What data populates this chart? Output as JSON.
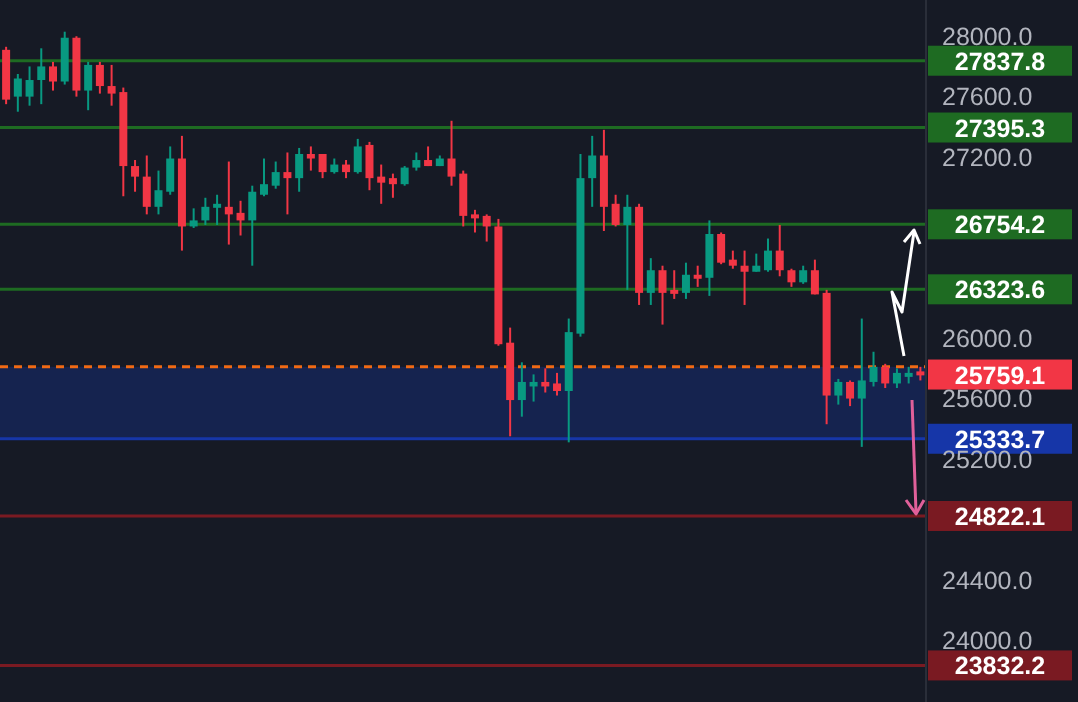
{
  "chart_data": {
    "type": "candlestick",
    "categories": [
      null,
      null,
      null,
      null,
      null,
      null,
      null,
      null,
      null,
      null,
      null,
      null,
      null,
      null,
      null,
      null,
      null,
      null,
      null,
      null,
      null,
      null,
      null,
      null,
      null,
      null,
      null,
      null,
      null,
      null,
      null,
      null,
      null,
      null,
      null,
      null,
      null,
      null,
      null,
      null,
      null,
      null,
      null,
      null,
      null,
      null,
      null,
      null,
      null,
      null,
      null,
      null,
      null,
      null,
      null,
      null,
      null,
      null,
      null,
      null,
      null,
      null,
      null,
      null,
      null,
      null,
      null,
      null,
      null,
      null,
      null,
      null,
      null,
      null,
      null,
      null,
      null,
      null,
      null
    ],
    "ohlc": [
      [
        27910,
        27930,
        27550,
        27580
      ],
      [
        27600,
        27750,
        27500,
        27720
      ],
      [
        27600,
        27800,
        27540,
        27710
      ],
      [
        27710,
        27920,
        27550,
        27800
      ],
      [
        27800,
        27830,
        27640,
        27700
      ],
      [
        27700,
        28030,
        27680,
        27990
      ],
      [
        27990,
        28000,
        27600,
        27640
      ],
      [
        27640,
        27830,
        27510,
        27810
      ],
      [
        27810,
        27830,
        27620,
        27670
      ],
      [
        27670,
        27810,
        27540,
        27620
      ],
      [
        27630,
        27660,
        26940,
        27140
      ],
      [
        27140,
        27180,
        26970,
        27070
      ],
      [
        27070,
        27210,
        26820,
        26870
      ],
      [
        26870,
        27110,
        26820,
        26980
      ],
      [
        26970,
        27270,
        26950,
        27190
      ],
      [
        27190,
        27340,
        26580,
        26740
      ],
      [
        26740,
        26860,
        26730,
        26780
      ],
      [
        26780,
        26930,
        26750,
        26870
      ],
      [
        26870,
        26950,
        26750,
        26890
      ],
      [
        26870,
        27170,
        26620,
        26820
      ],
      [
        26830,
        26910,
        26680,
        26780
      ],
      [
        26780,
        27010,
        26480,
        26970
      ],
      [
        26950,
        27190,
        26940,
        27020
      ],
      [
        27010,
        27170,
        26990,
        27100
      ],
      [
        27100,
        27230,
        26820,
        27060
      ],
      [
        27060,
        27260,
        26970,
        27220
      ],
      [
        27220,
        27270,
        27110,
        27190
      ],
      [
        27220,
        27220,
        27060,
        27100
      ],
      [
        27100,
        27190,
        27090,
        27150
      ],
      [
        27150,
        27180,
        27060,
        27100
      ],
      [
        27100,
        27320,
        27090,
        27270
      ],
      [
        27280,
        27300,
        26980,
        27060
      ],
      [
        27070,
        27150,
        26890,
        27030
      ],
      [
        27060,
        27090,
        26930,
        27020
      ],
      [
        27020,
        27140,
        27010,
        27130
      ],
      [
        27130,
        27230,
        27110,
        27180
      ],
      [
        27180,
        27270,
        27140,
        27140
      ],
      [
        27140,
        27210,
        27140,
        27190
      ],
      [
        27190,
        27440,
        27010,
        27070
      ],
      [
        27090,
        27110,
        26740,
        26810
      ],
      [
        26820,
        26850,
        26700,
        26810
      ],
      [
        26810,
        26820,
        26640,
        26740
      ],
      [
        26740,
        26790,
        25950,
        25960
      ],
      [
        25970,
        26070,
        25350,
        25590
      ],
      [
        25590,
        25840,
        25480,
        25710
      ],
      [
        25680,
        25760,
        25580,
        25710
      ],
      [
        25710,
        25800,
        25640,
        25680
      ],
      [
        25700,
        25770,
        25620,
        25650
      ],
      [
        25650,
        26130,
        25310,
        26040
      ],
      [
        26030,
        27220,
        26010,
        27060
      ],
      [
        27060,
        27340,
        26870,
        27210
      ],
      [
        27210,
        27380,
        26710,
        26870
      ],
      [
        26890,
        26950,
        26740,
        26750
      ],
      [
        26750,
        26950,
        26320,
        26870
      ],
      [
        26870,
        26890,
        26220,
        26300
      ],
      [
        26300,
        26530,
        26220,
        26450
      ],
      [
        26450,
        26480,
        26090,
        26300
      ],
      [
        26320,
        26450,
        26260,
        26300
      ],
      [
        26300,
        26500,
        26260,
        26420
      ],
      [
        26420,
        26480,
        26340,
        26400
      ],
      [
        26400,
        26780,
        26280,
        26690
      ],
      [
        26690,
        26700,
        26490,
        26500
      ],
      [
        26520,
        26580,
        26460,
        26480
      ],
      [
        26480,
        26580,
        26220,
        26440
      ],
      [
        26440,
        26560,
        26440,
        26480
      ],
      [
        26450,
        26660,
        26440,
        26580
      ],
      [
        26580,
        26750,
        26410,
        26450
      ],
      [
        26450,
        26460,
        26340,
        26370
      ],
      [
        26370,
        26480,
        26360,
        26450
      ],
      [
        26450,
        26520,
        26290,
        26290
      ],
      [
        26300,
        26320,
        25430,
        25620
      ],
      [
        25620,
        25730,
        25560,
        25710
      ],
      [
        25710,
        25720,
        25550,
        25600
      ],
      [
        25600,
        26130,
        25280,
        25720
      ],
      [
        25710,
        25910,
        25680,
        25810
      ],
      [
        25810,
        25830,
        25670,
        25700
      ],
      [
        25700,
        25800,
        25670,
        25770
      ],
      [
        25760,
        25810,
        25700,
        25770
      ],
      [
        25780,
        25810,
        25720,
        25759.1
      ]
    ],
    "ylim": [
      23590,
      28240
    ],
    "yticks": [
      {
        "value": 24000,
        "label": "24000.0"
      },
      {
        "value": 24400,
        "label": "24400.0"
      },
      {
        "value": 25200,
        "label": "25200.0"
      },
      {
        "value": 25600,
        "label": "25600.0"
      },
      {
        "value": 26000,
        "label": "26000.0"
      },
      {
        "value": 27200,
        "label": "27200.0"
      },
      {
        "value": 27600,
        "label": "27600.0"
      },
      {
        "value": 28000,
        "label": "28000.0"
      }
    ],
    "tick_labels": "y",
    "ref_lines": [
      {
        "axis": "y",
        "value": 27837.8,
        "label": "27837.8",
        "color": "#1e6b22"
      },
      {
        "axis": "y",
        "value": 27395.3,
        "label": "27395.3",
        "color": "#1e6b22"
      },
      {
        "axis": "y",
        "value": 26754.2,
        "label": "26754.2",
        "color": "#1e6b22"
      },
      {
        "axis": "y",
        "value": 26323.6,
        "label": "26323.6",
        "color": "#1e6b22"
      },
      {
        "axis": "y",
        "value": 25810,
        "label": null,
        "color": "#f06a14",
        "line_style": "dashed"
      },
      {
        "axis": "y",
        "value": 25333.7,
        "label": "25333.7",
        "color": "#1636a8"
      },
      {
        "axis": "y",
        "value": 24822.1,
        "label": "24822.1",
        "color": "#7a1a22"
      },
      {
        "axis": "y",
        "value": 23832.2,
        "label": "23832.2",
        "color": "#7a1a22"
      }
    ],
    "bands": [
      {
        "axis": "y",
        "from": 25333.7,
        "to": 25810,
        "color": "#15234f"
      }
    ],
    "annotations": [
      "25759.1"
    ]
  }
}
